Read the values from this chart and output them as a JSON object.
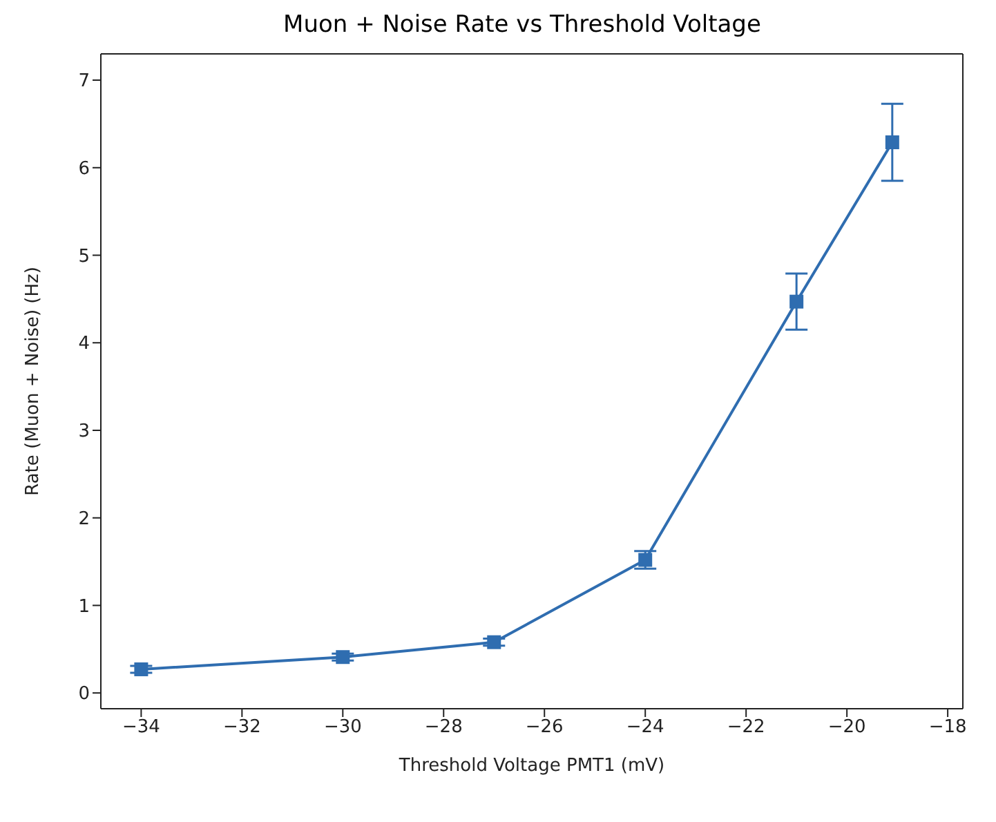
{
  "chart_data": {
    "type": "line",
    "title": "Muon + Noise Rate vs Threshold Voltage",
    "xlabel": "Threshold Voltage PMT1 (mV)",
    "ylabel": "Rate (Muon + Noise) (Hz)",
    "x": [
      -34,
      -30,
      -27,
      -24,
      -21,
      -19.1
    ],
    "series": [
      {
        "color": "#2f6db0",
        "values": [
          0.27,
          0.41,
          0.58,
          1.52,
          4.47,
          6.29
        ],
        "errors": [
          0.04,
          0.04,
          0.04,
          0.1,
          0.32,
          0.44
        ]
      }
    ],
    "marker": "square",
    "line_style": "solid",
    "grid": false,
    "legend": false,
    "xlim": [
      -34.8,
      -17.7
    ],
    "xticks": [
      -34,
      -32,
      -30,
      -28,
      -26,
      -24,
      -22,
      -20,
      -18
    ],
    "ylim": [
      -0.18,
      7.3
    ],
    "yticks": [
      0,
      1,
      2,
      3,
      4,
      5,
      6,
      7
    ]
  }
}
